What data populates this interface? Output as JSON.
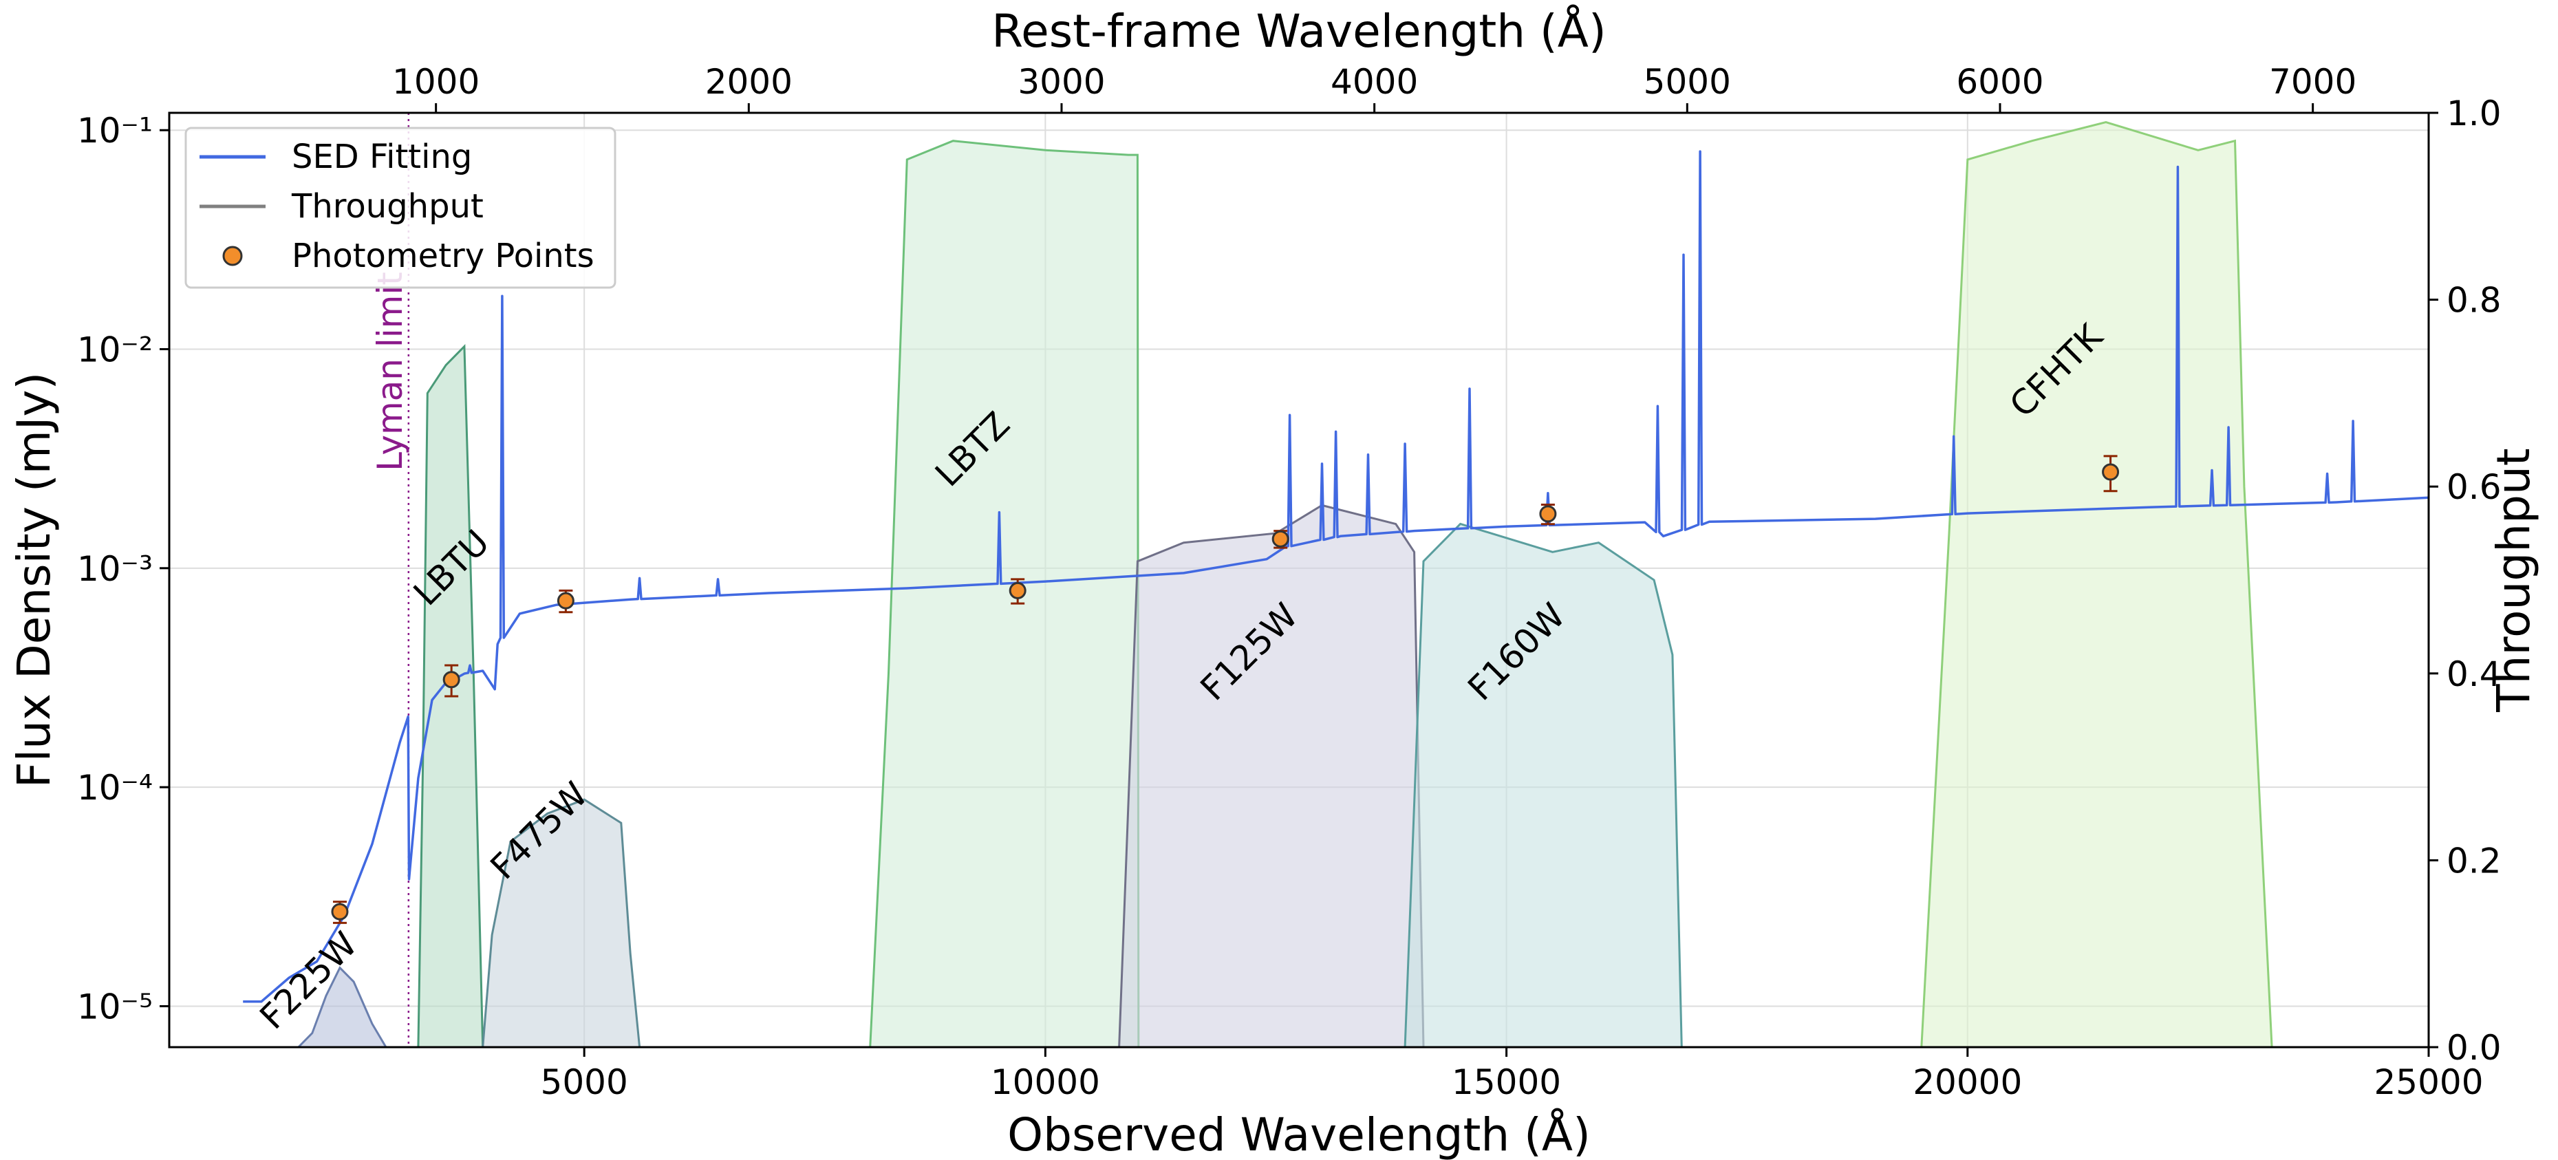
{
  "chart_data": {
    "type": "line",
    "xlabel": "Observed Wavelength (Å)",
    "ylabel": "Flux Density (mJy)",
    "y2label": "Throughput",
    "x2label": "Rest-frame Wavelength (Å)",
    "xlim": [
      500,
      25000
    ],
    "ylim": [
      6.5e-06,
      0.12
    ],
    "y_scale": "log",
    "y2lim": [
      0,
      1
    ],
    "x_ticks": [
      5000,
      10000,
      15000,
      20000,
      25000
    ],
    "x_tick_labels": [
      "5000",
      "10000",
      "15000",
      "20000",
      "25000"
    ],
    "x2_ticks": [
      1000,
      2000,
      3000,
      4000,
      5000,
      6000,
      7000
    ],
    "x2_tick_labels": [
      "1000",
      "2000",
      "3000",
      "4000",
      "5000",
      "6000",
      "7000"
    ],
    "rest_frame_scale": 3.392,
    "y_ticks": [
      1e-05,
      0.0001,
      0.001,
      0.01,
      0.1
    ],
    "y_tick_labels": [
      "10⁻⁵",
      "10⁻⁴",
      "10⁻³",
      "10⁻²",
      "10⁻¹"
    ],
    "y2_ticks": [
      0,
      0.2,
      0.4,
      0.6,
      0.8,
      1.0
    ],
    "y2_tick_labels": [
      "0.0",
      "0.2",
      "0.4",
      "0.6",
      "0.8",
      "1.0"
    ],
    "grid": true,
    "legend_position": "top-left",
    "legend": [
      {
        "label": "SED Fitting",
        "kind": "line",
        "color": "#4169e1"
      },
      {
        "label": "Throughput",
        "kind": "line",
        "color": "#808080"
      },
      {
        "label": "Photometry Points",
        "kind": "marker",
        "color": "#f28e2b"
      }
    ],
    "colors": {
      "sed": "#4169e1",
      "point_fill": "#f28e2b",
      "point_edge": "#333333",
      "errorbar": "#8b2500",
      "lyman": "#8b1a8b"
    },
    "lyman_limit": {
      "x": 3095,
      "label": "Lyman limit"
    },
    "sed": {
      "continuum": [
        [
          1300,
          1.05e-05
        ],
        [
          1500,
          1.05e-05
        ],
        [
          1800,
          1.35e-05
        ],
        [
          2100,
          1.6e-05
        ],
        [
          2400,
          2.6e-05
        ],
        [
          2700,
          5.5e-05
        ],
        [
          3000,
          0.00016
        ],
        [
          3090,
          0.00021
        ],
        [
          3100,
          3.8e-05
        ],
        [
          3200,
          0.00011
        ],
        [
          3350,
          0.00025
        ],
        [
          3500,
          0.0003
        ],
        [
          3700,
          0.00033
        ],
        [
          3900,
          0.00034
        ],
        [
          4030,
          0.00028
        ],
        [
          4060,
          0.00045
        ],
        [
          4300,
          0.00062
        ],
        [
          4700,
          0.00068
        ],
        [
          5500,
          0.00072
        ],
        [
          7000,
          0.00077
        ],
        [
          8500,
          0.00081
        ],
        [
          10000,
          0.00087
        ],
        [
          11500,
          0.00095
        ],
        [
          12400,
          0.0011
        ],
        [
          12600,
          0.00125
        ],
        [
          13200,
          0.0014
        ],
        [
          14000,
          0.00148
        ],
        [
          15000,
          0.00155
        ],
        [
          16500,
          0.00162
        ],
        [
          16700,
          0.0014
        ],
        [
          17200,
          0.00163
        ],
        [
          19000,
          0.00168
        ],
        [
          20000,
          0.00178
        ],
        [
          22000,
          0.0019
        ],
        [
          24000,
          0.002
        ],
        [
          25000,
          0.0021
        ]
      ],
      "lines": [
        [
          3540,
          0.0003
        ],
        [
          3760,
          0.00036
        ],
        [
          4110,
          0.0175
        ],
        [
          5600,
          0.0009
        ],
        [
          6450,
          0.00089
        ],
        [
          9500,
          0.0018
        ],
        [
          12650,
          0.005
        ],
        [
          13000,
          0.003
        ],
        [
          13150,
          0.0042
        ],
        [
          13500,
          0.0033
        ],
        [
          13900,
          0.0037
        ],
        [
          14600,
          0.0066
        ],
        [
          15450,
          0.0022
        ],
        [
          16640,
          0.0055
        ],
        [
          16920,
          0.027
        ],
        [
          17100,
          0.08
        ],
        [
          19850,
          0.004
        ],
        [
          22280,
          0.068
        ],
        [
          22650,
          0.0028
        ],
        [
          22830,
          0.0044
        ],
        [
          23900,
          0.0027
        ],
        [
          24180,
          0.0047
        ]
      ]
    },
    "photometry": [
      {
        "filter": "F225W",
        "x": 2350,
        "y": 2.7e-05,
        "err_lo": 3e-06,
        "err_hi": 3e-06
      },
      {
        "filter": "LBTU",
        "x": 3560,
        "y": 0.00031,
        "err_lo": 5e-05,
        "err_hi": 5e-05
      },
      {
        "filter": "F475W",
        "x": 4800,
        "y": 0.00071,
        "err_lo": 8e-05,
        "err_hi": 8e-05
      },
      {
        "filter": "LBTZ",
        "x": 9700,
        "y": 0.00079,
        "err_lo": 0.0001,
        "err_hi": 0.0001
      },
      {
        "filter": "F125W",
        "x": 12550,
        "y": 0.00136,
        "err_lo": 0.00012,
        "err_hi": 0.00012
      },
      {
        "filter": "F160W",
        "x": 15450,
        "y": 0.00177,
        "err_lo": 0.00018,
        "err_hi": 0.00018
      },
      {
        "filter": "CFHTK",
        "x": 21550,
        "y": 0.00275,
        "err_lo": 0.0005,
        "err_hi": 0.0005
      }
    ],
    "filters": [
      {
        "name": "F225W",
        "fill": "#b8c2dc",
        "edge": "#6a7fae",
        "curve": [
          [
            1900,
            0
          ],
          [
            2050,
            0.015
          ],
          [
            2200,
            0.055
          ],
          [
            2350,
            0.085
          ],
          [
            2500,
            0.07
          ],
          [
            2700,
            0.025
          ],
          [
            2850,
            0
          ]
        ],
        "label_at": [
          2100,
          1.2e-05
        ]
      },
      {
        "name": "LBTU",
        "fill": "#b9ddc8",
        "edge": "#4a9a78",
        "curve": [
          [
            3200,
            0
          ],
          [
            3250,
            0.3
          ],
          [
            3300,
            0.7
          ],
          [
            3500,
            0.73
          ],
          [
            3700,
            0.75
          ],
          [
            3800,
            0.4
          ],
          [
            3900,
            0
          ]
        ],
        "label_at": [
          3650,
          0.00092
        ]
      },
      {
        "name": "F475W",
        "fill": "#c9d6de",
        "edge": "#5e8c96",
        "curve": [
          [
            3900,
            0
          ],
          [
            4000,
            0.12
          ],
          [
            4200,
            0.22
          ],
          [
            4600,
            0.25
          ],
          [
            5000,
            0.265
          ],
          [
            5400,
            0.24
          ],
          [
            5500,
            0.1
          ],
          [
            5600,
            0
          ]
        ],
        "label_at": [
          4600,
          5.8e-05
        ]
      },
      {
        "name": "LBTZ",
        "fill": "#d2ecd8",
        "edge": "#6dc07a",
        "curve": [
          [
            8100,
            0
          ],
          [
            8300,
            0.4
          ],
          [
            8500,
            0.95
          ],
          [
            9000,
            0.97
          ],
          [
            10000,
            0.96
          ],
          [
            10900,
            0.955
          ],
          [
            11000,
            0.955
          ],
          [
            11010,
            0
          ]
        ],
        "label_at": [
          9300,
          0.0032
        ]
      },
      {
        "name": "F125W",
        "fill": "#d2d2e2",
        "edge": "#707088",
        "curve": [
          [
            10800,
            0
          ],
          [
            11000,
            0.52
          ],
          [
            11500,
            0.54
          ],
          [
            12500,
            0.55
          ],
          [
            13000,
            0.58
          ],
          [
            13800,
            0.56
          ],
          [
            14000,
            0.53
          ],
          [
            14100,
            0
          ]
        ],
        "label_at": [
          12300,
          0.00038
        ]
      },
      {
        "name": "F160W",
        "fill": "#c8e2e2",
        "edge": "#5a9e9e",
        "curve": [
          [
            13900,
            0
          ],
          [
            14100,
            0.52
          ],
          [
            14500,
            0.56
          ],
          [
            15500,
            0.53
          ],
          [
            16000,
            0.54
          ],
          [
            16600,
            0.5
          ],
          [
            16800,
            0.42
          ],
          [
            16900,
            0
          ]
        ],
        "label_at": [
          15200,
          0.00038
        ]
      },
      {
        "name": "CFHTK",
        "fill": "#ddf3cf",
        "edge": "#8fd07a",
        "curve": [
          [
            19500,
            0
          ],
          [
            19800,
            0.55
          ],
          [
            20000,
            0.95
          ],
          [
            20700,
            0.97
          ],
          [
            21500,
            0.99
          ],
          [
            22500,
            0.96
          ],
          [
            22900,
            0.97
          ],
          [
            23000,
            0.6
          ],
          [
            23300,
            0
          ]
        ],
        "label_at": [
          21050,
          0.0073
        ]
      }
    ]
  }
}
